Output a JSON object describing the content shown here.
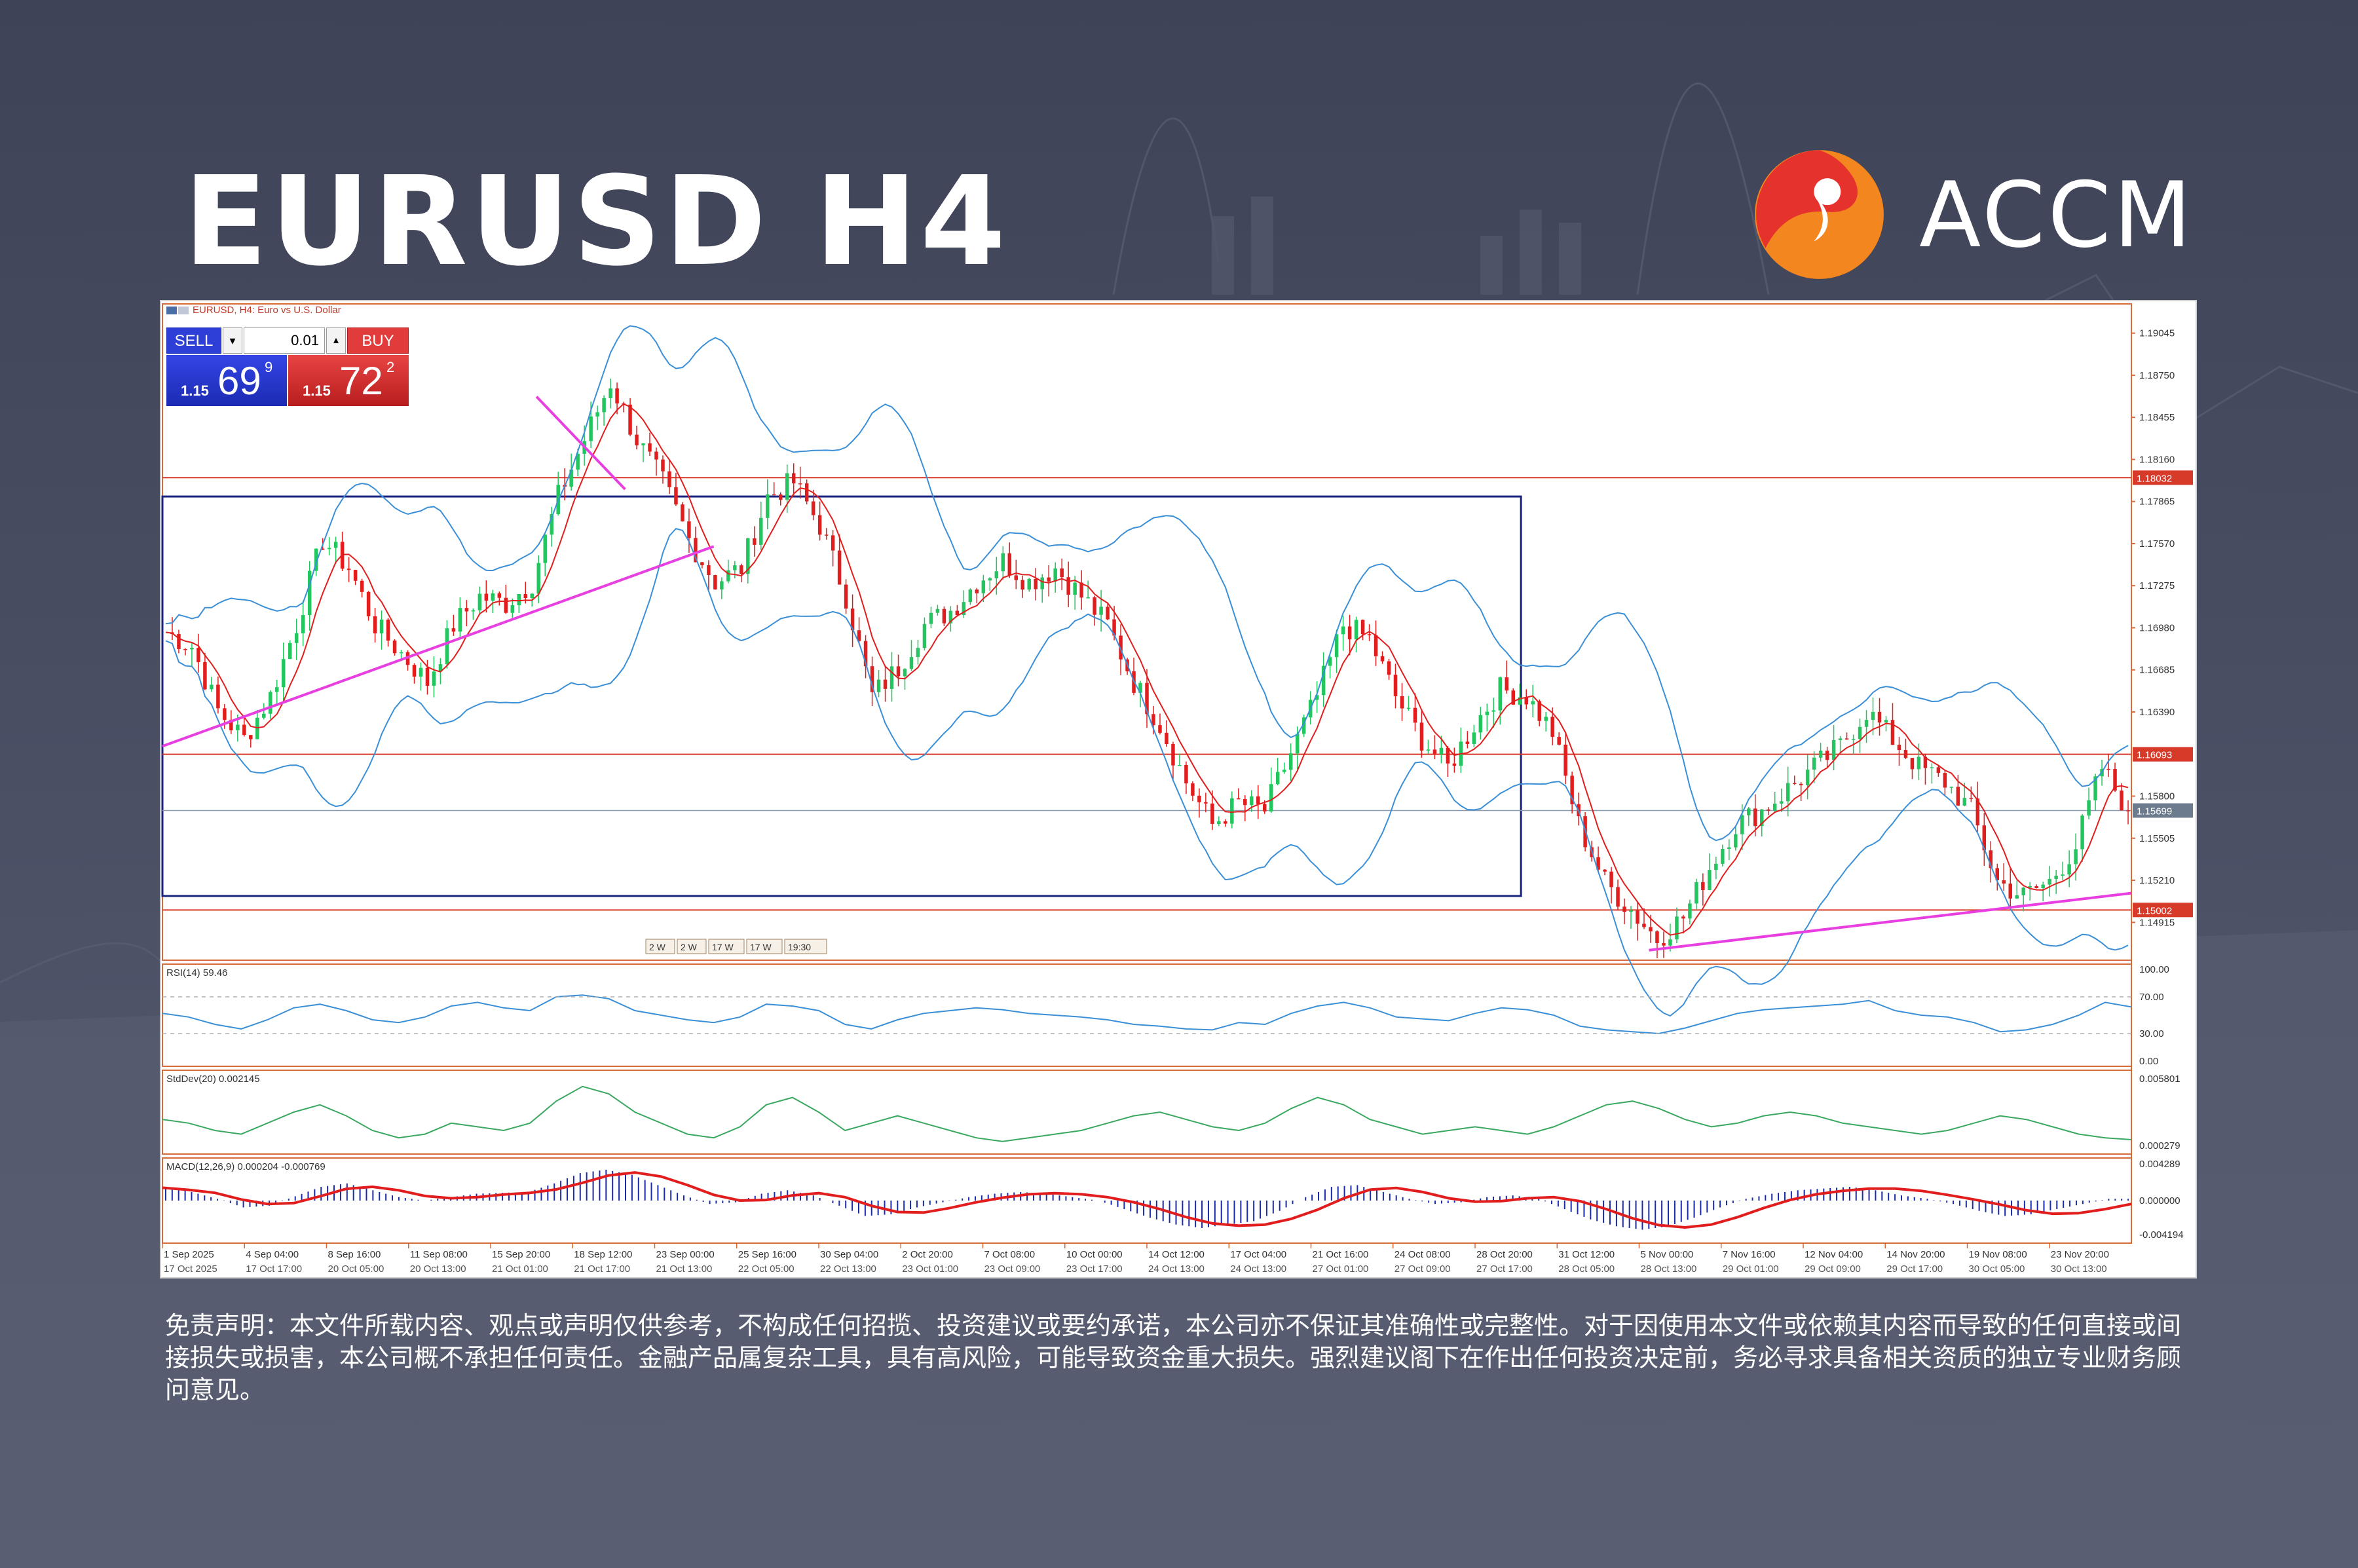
{
  "header": {
    "title": "EURUSD H4",
    "brand": "ACCM"
  },
  "colors": {
    "background": "#474b60",
    "bull_candle": "#22c55e",
    "bear_candle": "#e11d1d",
    "bands": "#3b8fd6",
    "fast_ma": "#e11d1d",
    "trendline": "#e83fe0",
    "box": "#1a237e",
    "level_line": "#d83a2a",
    "rsi_line": "#3b8fd6",
    "stddev_line": "#3aa860",
    "macd_hist": "#1a2aa8",
    "macd_signal": "#e11d1d",
    "logo_orange": "#f3861f",
    "logo_red": "#e5322d"
  },
  "trade_panel": {
    "sell_label": "SELL",
    "buy_label": "BUY",
    "lot": "0.01",
    "sell_small": "1.15",
    "sell_big": "69",
    "sell_sup": "9",
    "buy_small": "1.15",
    "buy_big": "72",
    "buy_sup": "2"
  },
  "chart_data": {
    "type": "candlestick",
    "symbol_label": "EURUSD, H4:  Euro vs U.S. Dollar",
    "price_axis": {
      "range": [
        1.1465,
        1.1925
      ],
      "ticks": [
        "1.19045",
        "1.18750",
        "1.18455",
        "1.18160",
        "1.17865",
        "1.17570",
        "1.17275",
        "1.16980",
        "1.16685",
        "1.16390",
        "1.15800",
        "1.15505",
        "1.15210",
        "1.14915"
      ]
    },
    "horizontal_levels": [
      {
        "value": 1.18032,
        "label": "1.18032"
      },
      {
        "value": 1.16093,
        "label": "1.16093"
      },
      {
        "value": 1.15002,
        "label": "1.15002"
      }
    ],
    "current_price": {
      "value": 1.15699,
      "label": "1.15699"
    },
    "range_box": {
      "x_range": [
        0.0,
        0.69
      ],
      "price_range": [
        1.151,
        1.179
      ]
    },
    "trendlines": [
      {
        "from": [
          0.0,
          1.1615
        ],
        "to": [
          0.28,
          1.1755
        ]
      },
      {
        "from": [
          0.19,
          1.186
        ],
        "to": [
          0.235,
          1.1795
        ]
      },
      {
        "from": [
          0.755,
          1.1472
        ],
        "to": [
          1.0,
          1.1512
        ]
      }
    ],
    "period_separators": [
      "2 W",
      "2 W",
      "17 W",
      "17 W",
      "19:30"
    ],
    "x_axis": {
      "upper_labels": [
        "1 Sep 2025",
        "4 Sep 04:00",
        "8 Sep 16:00",
        "11 Sep 08:00",
        "15 Sep 20:00",
        "18 Sep 12:00",
        "23 Sep 00:00",
        "25 Sep 16:00",
        "30 Sep 04:00",
        "2 Oct 20:00",
        "7 Oct 08:00",
        "10 Oct 00:00",
        "14 Oct 12:00",
        "17 Oct 04:00",
        "21 Oct 16:00",
        "24 Oct 08:00",
        "28 Oct 20:00",
        "31 Oct 12:00",
        "5 Nov 00:00",
        "7 Nov 16:00",
        "12 Nov 04:00",
        "14 Nov 20:00",
        "19 Nov 08:00",
        "23 Nov 20:00"
      ],
      "lower_labels": [
        "17 Oct 2025",
        "17 Oct 17:00",
        "20 Oct 05:00",
        "20 Oct 13:00",
        "21 Oct 01:00",
        "21 Oct 17:00",
        "21 Oct 13:00",
        "22 Oct 05:00",
        "22 Oct 13:00",
        "23 Oct 01:00",
        "23 Oct 09:00",
        "23 Oct 17:00",
        "24 Oct 13:00",
        "24 Oct 13:00",
        "27 Oct 01:00",
        "27 Oct 09:00",
        "27 Oct 17:00",
        "28 Oct 05:00",
        "28 Oct 13:00",
        "29 Oct 01:00",
        "29 Oct 09:00",
        "29 Oct 17:00",
        "30 Oct 05:00",
        "30 Oct 13:00"
      ]
    },
    "price_path": [
      1.1695,
      1.1685,
      1.164,
      1.162,
      1.165,
      1.17,
      1.176,
      1.174,
      1.17,
      1.168,
      1.166,
      1.17,
      1.172,
      1.1715,
      1.173,
      1.179,
      1.183,
      1.187,
      1.183,
      1.18,
      1.176,
      1.173,
      1.174,
      1.179,
      1.18,
      1.177,
      1.172,
      1.165,
      1.167,
      1.17,
      1.171,
      1.173,
      1.1745,
      1.173,
      1.174,
      1.172,
      1.17,
      1.166,
      1.163,
      1.159,
      1.156,
      1.1575,
      1.157,
      1.161,
      1.165,
      1.17,
      1.169,
      1.165,
      1.162,
      1.16,
      1.163,
      1.1655,
      1.165,
      1.1625,
      1.156,
      1.152,
      1.15,
      1.148,
      1.1495,
      1.153,
      1.156,
      1.157,
      1.1585,
      1.16,
      1.1615,
      1.164,
      1.162,
      1.16,
      1.159,
      1.157,
      1.152,
      1.151,
      1.152,
      1.1545,
      1.16,
      1.157
    ],
    "indicators": {
      "bands": "Bollinger Bands",
      "rsi": {
        "label": "RSI(14) 59.46",
        "ticks": [
          "100.00",
          "70.00",
          "30.00",
          "0.00"
        ],
        "levels": [
          70,
          30
        ],
        "values": [
          52,
          48,
          40,
          35,
          45,
          58,
          62,
          55,
          45,
          42,
          48,
          60,
          64,
          58,
          55,
          70,
          72,
          68,
          55,
          50,
          45,
          42,
          48,
          62,
          60,
          55,
          40,
          35,
          45,
          52,
          55,
          58,
          56,
          52,
          50,
          48,
          45,
          40,
          38,
          35,
          34,
          42,
          40,
          52,
          60,
          64,
          58,
          48,
          46,
          44,
          52,
          58,
          56,
          50,
          38,
          34,
          32,
          30,
          36,
          44,
          52,
          56,
          58,
          60,
          62,
          66,
          55,
          50,
          48,
          42,
          32,
          34,
          40,
          50,
          64,
          59
        ]
      },
      "stddev": {
        "label": "StdDev(20) 0.002145",
        "ticks": [
          "0.005801",
          "0.000279"
        ],
        "values": [
          0.0032,
          0.003,
          0.0026,
          0.0024,
          0.003,
          0.0036,
          0.004,
          0.0034,
          0.0026,
          0.0022,
          0.0024,
          0.003,
          0.0028,
          0.0026,
          0.003,
          0.0042,
          0.005,
          0.0046,
          0.0036,
          0.003,
          0.0024,
          0.0022,
          0.0028,
          0.004,
          0.0044,
          0.0036,
          0.0026,
          0.003,
          0.0034,
          0.003,
          0.0026,
          0.0022,
          0.002,
          0.0022,
          0.0024,
          0.0026,
          0.003,
          0.0034,
          0.0036,
          0.0032,
          0.0028,
          0.0026,
          0.003,
          0.0038,
          0.0044,
          0.004,
          0.0032,
          0.0028,
          0.0024,
          0.0026,
          0.0028,
          0.0026,
          0.0024,
          0.0028,
          0.0034,
          0.004,
          0.0042,
          0.0038,
          0.0032,
          0.0028,
          0.003,
          0.0034,
          0.0036,
          0.0034,
          0.003,
          0.0028,
          0.0026,
          0.0024,
          0.0026,
          0.003,
          0.0034,
          0.0032,
          0.0028,
          0.0024,
          0.0022,
          0.0021
        ]
      },
      "macd": {
        "label": "MACD(12,26,9) 0.000204 -0.000769",
        "ticks": [
          "0.004289",
          "0.000000",
          "-0.004194"
        ],
        "values": [
          0.0015,
          0.001,
          0.0002,
          -0.0008,
          -0.0006,
          0.0005,
          0.0016,
          0.002,
          0.0012,
          0.0004,
          0.0,
          0.0004,
          0.0008,
          0.0009,
          0.001,
          0.002,
          0.0032,
          0.0036,
          0.003,
          0.0018,
          0.0006,
          -0.0004,
          -0.0002,
          0.0008,
          0.0012,
          0.0006,
          -0.0006,
          -0.0018,
          -0.0016,
          -0.0008,
          -0.0002,
          0.0004,
          0.0008,
          0.001,
          0.0008,
          0.0004,
          0.0,
          -0.001,
          -0.002,
          -0.0028,
          -0.0032,
          -0.0028,
          -0.0024,
          -0.0012,
          0.0004,
          0.0016,
          0.0018,
          0.001,
          0.0002,
          -0.0004,
          -0.0002,
          0.0004,
          0.0006,
          0.0002,
          -0.001,
          -0.0022,
          -0.003,
          -0.0034,
          -0.003,
          -0.002,
          -0.0008,
          0.0002,
          0.0008,
          0.0012,
          0.0014,
          0.0016,
          0.0012,
          0.0006,
          0.0002,
          -0.0004,
          -0.0012,
          -0.0018,
          -0.0016,
          -0.001,
          -0.0004,
          0.0002
        ]
      }
    }
  },
  "disclaimer": "免责声明：本文件所载内容、观点或声明仅供参考，不构成任何招揽、投资建议或要约承诺，本公司亦不保证其准确性或完整性。对于因使用本文件或依赖其内容而导致的任何直接或间接损失或损害，本公司概不承担任何责任。金融产品属复杂工具，具有高风险，可能导致资金重大损失。强烈建议阁下在作出任何投资决定前，务必寻求具备相关资质的独立专业财务顾问意见。"
}
